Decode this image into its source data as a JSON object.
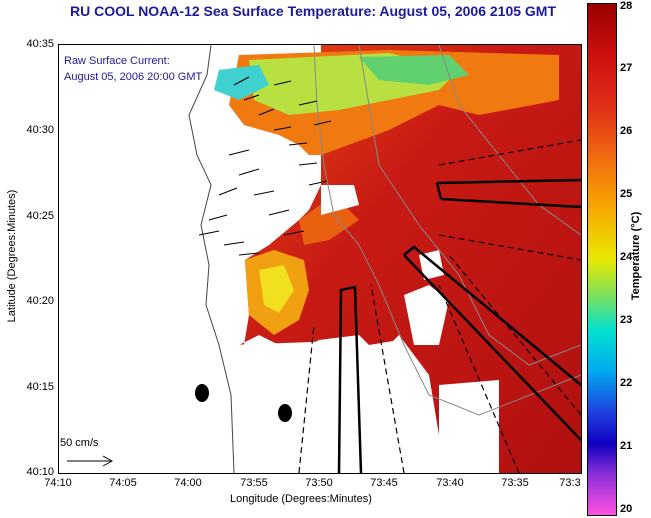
{
  "title": "RU COOL  NOAA-12  Sea Surface Temperature:  August 05, 2006 2105 GMT",
  "legend": {
    "line1": "Raw Surface Current:",
    "line2": "August 05, 2006 20:00 GMT"
  },
  "scale_label": "50 cm/s",
  "axes": {
    "xlabel": "Longitude (Degrees:Minutes)",
    "ylabel": "Latitude (Degrees:Minutes)",
    "xticks": [
      "74:10",
      "74:05",
      "74:00",
      "73:55",
      "73:50",
      "73:45",
      "73:40",
      "73:35",
      "73:3"
    ],
    "yticks": [
      "40:35",
      "40:30",
      "40:25",
      "40:20",
      "40:15",
      "40:10"
    ]
  },
  "colorbar": {
    "label": "Temperature (°C)",
    "ticks": [
      "28",
      "27",
      "26",
      "25",
      "24",
      "23",
      "22",
      "21",
      "20"
    ],
    "range": [
      20,
      28
    ]
  },
  "colors": {
    "title": "#1a1aa0",
    "warm": "#c81010",
    "land": "#ffffff"
  }
}
